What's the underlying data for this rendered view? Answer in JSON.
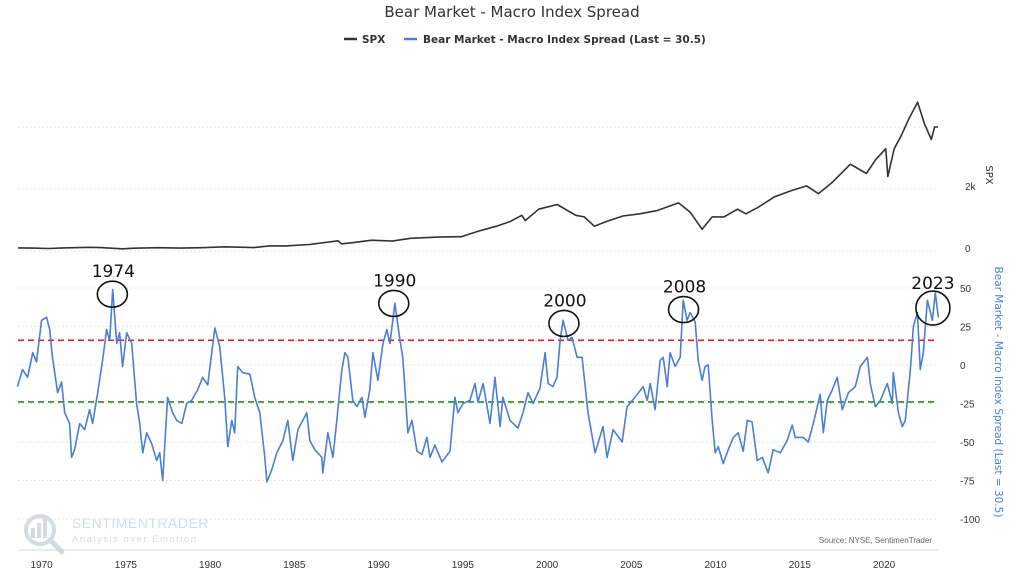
{
  "chart_data": [
    {
      "panel": "top",
      "type": "line",
      "title": "Bear Market - Macro Index Spread",
      "ylabel": "SPX",
      "yticks": [
        "0",
        "2k"
      ],
      "ytick_values": [
        0,
        2000
      ],
      "ylim": [
        0,
        5000
      ],
      "grid": true,
      "series": [
        {
          "name": "SPX",
          "color": "#333333",
          "x": [
            1968.6,
            1969.5,
            1970.4,
            1971.3,
            1972.9,
            1973.5,
            1974.8,
            1975.5,
            1976.9,
            1978.2,
            1979.5,
            1980.9,
            1982.6,
            1983.5,
            1984.5,
            1985.9,
            1987.6,
            1987.8,
            1988.5,
            1989.6,
            1990.8,
            1991.9,
            1993.5,
            1994.9,
            1996.0,
            1997.0,
            1997.8,
            1998.5,
            1998.7,
            1999.5,
            2000.6,
            2001.7,
            2002.2,
            2002.8,
            2003.5,
            2004.5,
            2005.5,
            2006.5,
            2007.8,
            2008.5,
            2009.2,
            2009.8,
            2010.5,
            2011.3,
            2011.8,
            2012.5,
            2013.5,
            2014.5,
            2015.4,
            2016.1,
            2016.9,
            2018.0,
            2018.95,
            2019.5,
            2020.1,
            2020.22,
            2020.6,
            2021.0,
            2021.5,
            2021.99,
            2022.4,
            2022.8,
            2023.0,
            2023.2
          ],
          "y": [
            100,
            95,
            80,
            100,
            118,
            110,
            70,
            90,
            105,
            95,
            105,
            135,
            110,
            165,
            165,
            210,
            330,
            230,
            270,
            350,
            320,
            410,
            450,
            460,
            650,
            800,
            950,
            1150,
            980,
            1350,
            1500,
            1150,
            1100,
            800,
            950,
            1130,
            1200,
            1300,
            1550,
            1250,
            700,
            1100,
            1100,
            1350,
            1200,
            1400,
            1750,
            1950,
            2100,
            1850,
            2200,
            2800,
            2500,
            2950,
            3300,
            2400,
            3300,
            3700,
            4300,
            4800,
            4100,
            3600,
            4000,
            4000
          ]
        }
      ]
    },
    {
      "panel": "bottom",
      "type": "line",
      "ylabel": "Bear Market - Macro Index Spread (Last = 30.5)",
      "yticks": [
        "50",
        "25",
        "0",
        "-25",
        "-50",
        "-75",
        "-100"
      ],
      "ytick_values": [
        50,
        25,
        0,
        -25,
        -50,
        -75,
        -100
      ],
      "ylim": [
        -100,
        60
      ],
      "grid": true,
      "xticks": [
        "1970",
        "1975",
        "1980",
        "1985",
        "1990",
        "1995",
        "2000",
        "2005",
        "2010",
        "2015",
        "2020"
      ],
      "xtick_values": [
        1970,
        1975,
        1980,
        1985,
        1990,
        1995,
        2000,
        2005,
        2010,
        2015,
        2020
      ],
      "xlim": [
        1968.6,
        2023.2
      ],
      "reference_lines": [
        {
          "value": 16,
          "color": "#dd2222",
          "style": "dashed"
        },
        {
          "value": -24,
          "color": "#2e8b1e",
          "style": "dashed"
        }
      ],
      "annotations": [
        {
          "label": "1974",
          "x": 1974.2,
          "y": 46
        },
        {
          "label": "1990",
          "x": 1990.9,
          "y": 40
        },
        {
          "label": "2000",
          "x": 2001.0,
          "y": 27
        },
        {
          "label": "2008",
          "x": 2008.1,
          "y": 36
        },
        {
          "label": "2023",
          "x": 2022.9,
          "y": 37
        }
      ],
      "series": [
        {
          "name": "Bear Market - Macro Index Spread (Last = 30.5)",
          "color": "#4a7fd4",
          "x": [
            1968.57,
            1968.87,
            1969.17,
            1969.47,
            1969.7,
            1970.0,
            1970.3,
            1970.48,
            1970.65,
            1970.95,
            1971.19,
            1971.37,
            1971.66,
            1971.78,
            1971.96,
            1972.26,
            1972.55,
            1972.85,
            1973.03,
            1973.33,
            1973.62,
            1973.86,
            1974.04,
            1974.22,
            1974.46,
            1974.63,
            1974.81,
            1975.05,
            1975.35,
            1975.64,
            1975.82,
            1976.0,
            1976.24,
            1976.53,
            1976.83,
            1977.01,
            1977.19,
            1977.48,
            1977.78,
            1978.02,
            1978.32,
            1978.61,
            1978.91,
            1979.27,
            1979.56,
            1979.86,
            1980.28,
            1980.57,
            1980.87,
            1981.05,
            1981.29,
            1981.46,
            1981.64,
            1981.94,
            1982.36,
            1982.65,
            1982.95,
            1983.25,
            1983.37,
            1983.66,
            1983.96,
            1984.32,
            1984.61,
            1984.91,
            1985.21,
            1985.74,
            1985.92,
            1986.22,
            1986.63,
            1986.69,
            1986.99,
            1987.29,
            1987.52,
            1987.82,
            1988.0,
            1988.18,
            1988.47,
            1988.71,
            1989.01,
            1989.19,
            1989.48,
            1989.66,
            1989.96,
            1990.26,
            1990.49,
            1990.67,
            1990.97,
            1991.27,
            1991.44,
            1991.74,
            1991.98,
            1992.28,
            1992.57,
            1992.87,
            1993.05,
            1993.34,
            1993.76,
            1994.24,
            1994.53,
            1994.71,
            1995.01,
            1995.42,
            1995.72,
            1995.9,
            1996.2,
            1996.61,
            1996.91,
            1997.21,
            1997.38,
            1997.8,
            1998.27,
            1998.57,
            1998.87,
            1999.17,
            1999.58,
            1999.88,
            2000.06,
            2000.35,
            2000.59,
            2000.77,
            2000.95,
            2001.24,
            2001.48,
            2001.78,
            2002.08,
            2002.43,
            2002.85,
            2003.32,
            2003.56,
            2003.92,
            2004.45,
            2004.75,
            2005.22,
            2005.7,
            2005.94,
            2006.12,
            2006.41,
            2006.71,
            2006.89,
            2007.13,
            2007.3,
            2007.6,
            2007.9,
            2008.08,
            2008.31,
            2008.49,
            2008.79,
            2008.97,
            2009.2,
            2009.38,
            2009.56,
            2009.8,
            2009.98,
            2010.16,
            2010.45,
            2010.75,
            2011.05,
            2011.34,
            2011.64,
            2011.88,
            2012.17,
            2012.47,
            2012.77,
            2013.12,
            2013.42,
            2013.84,
            2014.25,
            2014.55,
            2014.73,
            2015.2,
            2015.5,
            2015.8,
            2016.21,
            2016.39,
            2016.63,
            2016.93,
            2017.22,
            2017.52,
            2017.88,
            2018.29,
            2018.59,
            2019.01,
            2019.18,
            2019.48,
            2019.78,
            2020.19,
            2020.49,
            2020.55,
            2020.85,
            2021.08,
            2021.26,
            2021.56,
            2021.74,
            2021.98,
            2022.15,
            2022.33,
            2022.57,
            2022.87,
            2023.04,
            2023.22
          ],
          "y": [
            -14,
            -3,
            -8,
            8,
            2,
            29,
            31,
            23,
            5,
            -18,
            -11,
            -31,
            -38,
            -60,
            -55,
            -38,
            -42,
            -29,
            -38,
            -18,
            3,
            23,
            16,
            49,
            14,
            21,
            -1,
            21,
            14,
            -25,
            -38,
            -57,
            -44,
            -51,
            -62,
            -57,
            -75,
            -21,
            -31,
            -36,
            -38,
            -25,
            -23,
            -16,
            -8,
            -13,
            24,
            12,
            -21,
            -53,
            -36,
            -44,
            -1,
            -5,
            -6,
            -21,
            -31,
            -60,
            -76,
            -68,
            -57,
            -49,
            -36,
            -62,
            -42,
            -31,
            -49,
            -55,
            -60,
            -70,
            -44,
            -60,
            -36,
            -3,
            8,
            5,
            -23,
            -27,
            -21,
            -34,
            -16,
            8,
            -10,
            14,
            23,
            14,
            40,
            16,
            5,
            -44,
            -36,
            -56,
            -58,
            -47,
            -60,
            -52,
            -63,
            -56,
            -21,
            -31,
            -25,
            -23,
            -12,
            -24,
            -12,
            -38,
            -8,
            -40,
            -21,
            -36,
            -41,
            -31,
            -18,
            -25,
            -15,
            8,
            -12,
            -14,
            -8,
            16,
            29,
            16,
            18,
            5,
            5,
            -31,
            -57,
            -40,
            -60,
            -42,
            -50,
            -27,
            -21,
            -14,
            -23,
            -12,
            -29,
            3,
            5,
            -14,
            8,
            -1,
            5,
            42,
            29,
            34,
            28,
            3,
            -10,
            -1,
            0,
            -36,
            -57,
            -53,
            -64,
            -55,
            -47,
            -44,
            -56,
            -36,
            -37,
            -62,
            -60,
            -70,
            -55,
            -57,
            -49,
            -39,
            -47,
            -47,
            -50,
            -38,
            -19,
            -44,
            -23,
            -16,
            -8,
            -29,
            -18,
            -14,
            -1,
            5,
            -12,
            -27,
            -23,
            -12,
            -25,
            -5,
            -31,
            -40,
            -36,
            -3,
            25,
            34,
            -3,
            8,
            42,
            29,
            47,
            31
          ]
        }
      ]
    }
  ],
  "legend": {
    "placement": "top",
    "items": [
      {
        "label": "SPX",
        "color": "#333333"
      },
      {
        "label": "Bear Market - Macro Index Spread (Last = 30.5)",
        "color": "#4a7fd4"
      }
    ]
  },
  "source": "Source: NYSE, SentimenTrader",
  "watermark": {
    "name": "SENTIMENTRADER",
    "tagline": "Analysis over Emotion"
  }
}
